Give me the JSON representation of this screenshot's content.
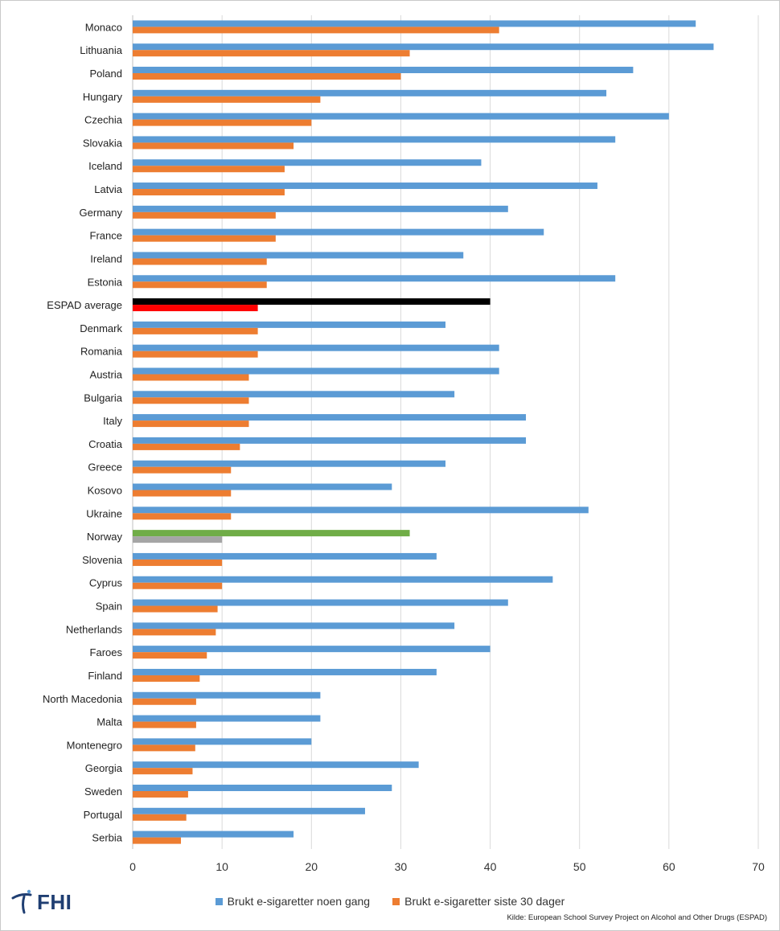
{
  "chart_data": {
    "type": "bar",
    "orientation": "horizontal",
    "categories": [
      "Monaco",
      "Lithuania",
      "Poland",
      "Hungary",
      "Czechia",
      "Slovakia",
      "Iceland",
      "Latvia",
      "Germany",
      "France",
      "Ireland",
      "Estonia",
      "ESPAD average",
      "Denmark",
      "Romania",
      "Austria",
      "Bulgaria",
      "Italy",
      "Croatia",
      "Greece",
      "Kosovo",
      "Ukraine",
      "Norway",
      "Slovenia",
      "Cyprus",
      "Spain",
      "Netherlands",
      "Faroes",
      "Finland",
      "North Macedonia",
      "Malta",
      "Montenegro",
      "Georgia",
      "Sweden",
      "Portugal",
      "Serbia"
    ],
    "series": [
      {
        "name": "Brukt e-sigaretter noen gang",
        "color": "#5b9bd5",
        "values": [
          63,
          65,
          56,
          53,
          60,
          54,
          39,
          52,
          42,
          46,
          37,
          54,
          40,
          35,
          41,
          41,
          36,
          44,
          44,
          35,
          29,
          51,
          31,
          34,
          47,
          42,
          36,
          40,
          34,
          21,
          21,
          20,
          32,
          29,
          26,
          18
        ]
      },
      {
        "name": "Brukt e-sigaretter siste 30 dager",
        "color": "#ed7d31",
        "values": [
          41,
          31,
          30,
          21,
          20,
          18,
          17,
          17,
          16,
          16,
          15,
          15,
          14,
          14,
          14,
          13,
          13,
          13,
          12,
          11,
          11,
          11,
          10,
          10,
          10,
          9.5,
          9.3,
          8.3,
          7.5,
          7.1,
          7.1,
          7,
          6.7,
          6.2,
          6,
          5.4
        ]
      }
    ],
    "highlights": {
      "ESPAD average": {
        "Brukt e-sigaretter noen gang": "#000000",
        "Brukt e-sigaretter siste 30 dager": "#ff0000"
      },
      "Norway": {
        "Brukt e-sigaretter noen gang": "#70ad47",
        "Brukt e-sigaretter siste 30 dager": "#a5a5a5"
      }
    },
    "xlim": [
      0,
      70
    ],
    "xticks": [
      0,
      10,
      20,
      30,
      40,
      50,
      60,
      70
    ],
    "grid": true,
    "legend_position": "bottom"
  },
  "legend": {
    "series1": "Brukt e-sigaretter noen gang",
    "series2": "Brukt e-sigaretter siste 30 dager"
  },
  "source": "Kilde: European School Survey Project on Alcohol and Other Drugs (ESPAD)",
  "logo": {
    "text": "FHI",
    "color": "#1f3e72"
  }
}
